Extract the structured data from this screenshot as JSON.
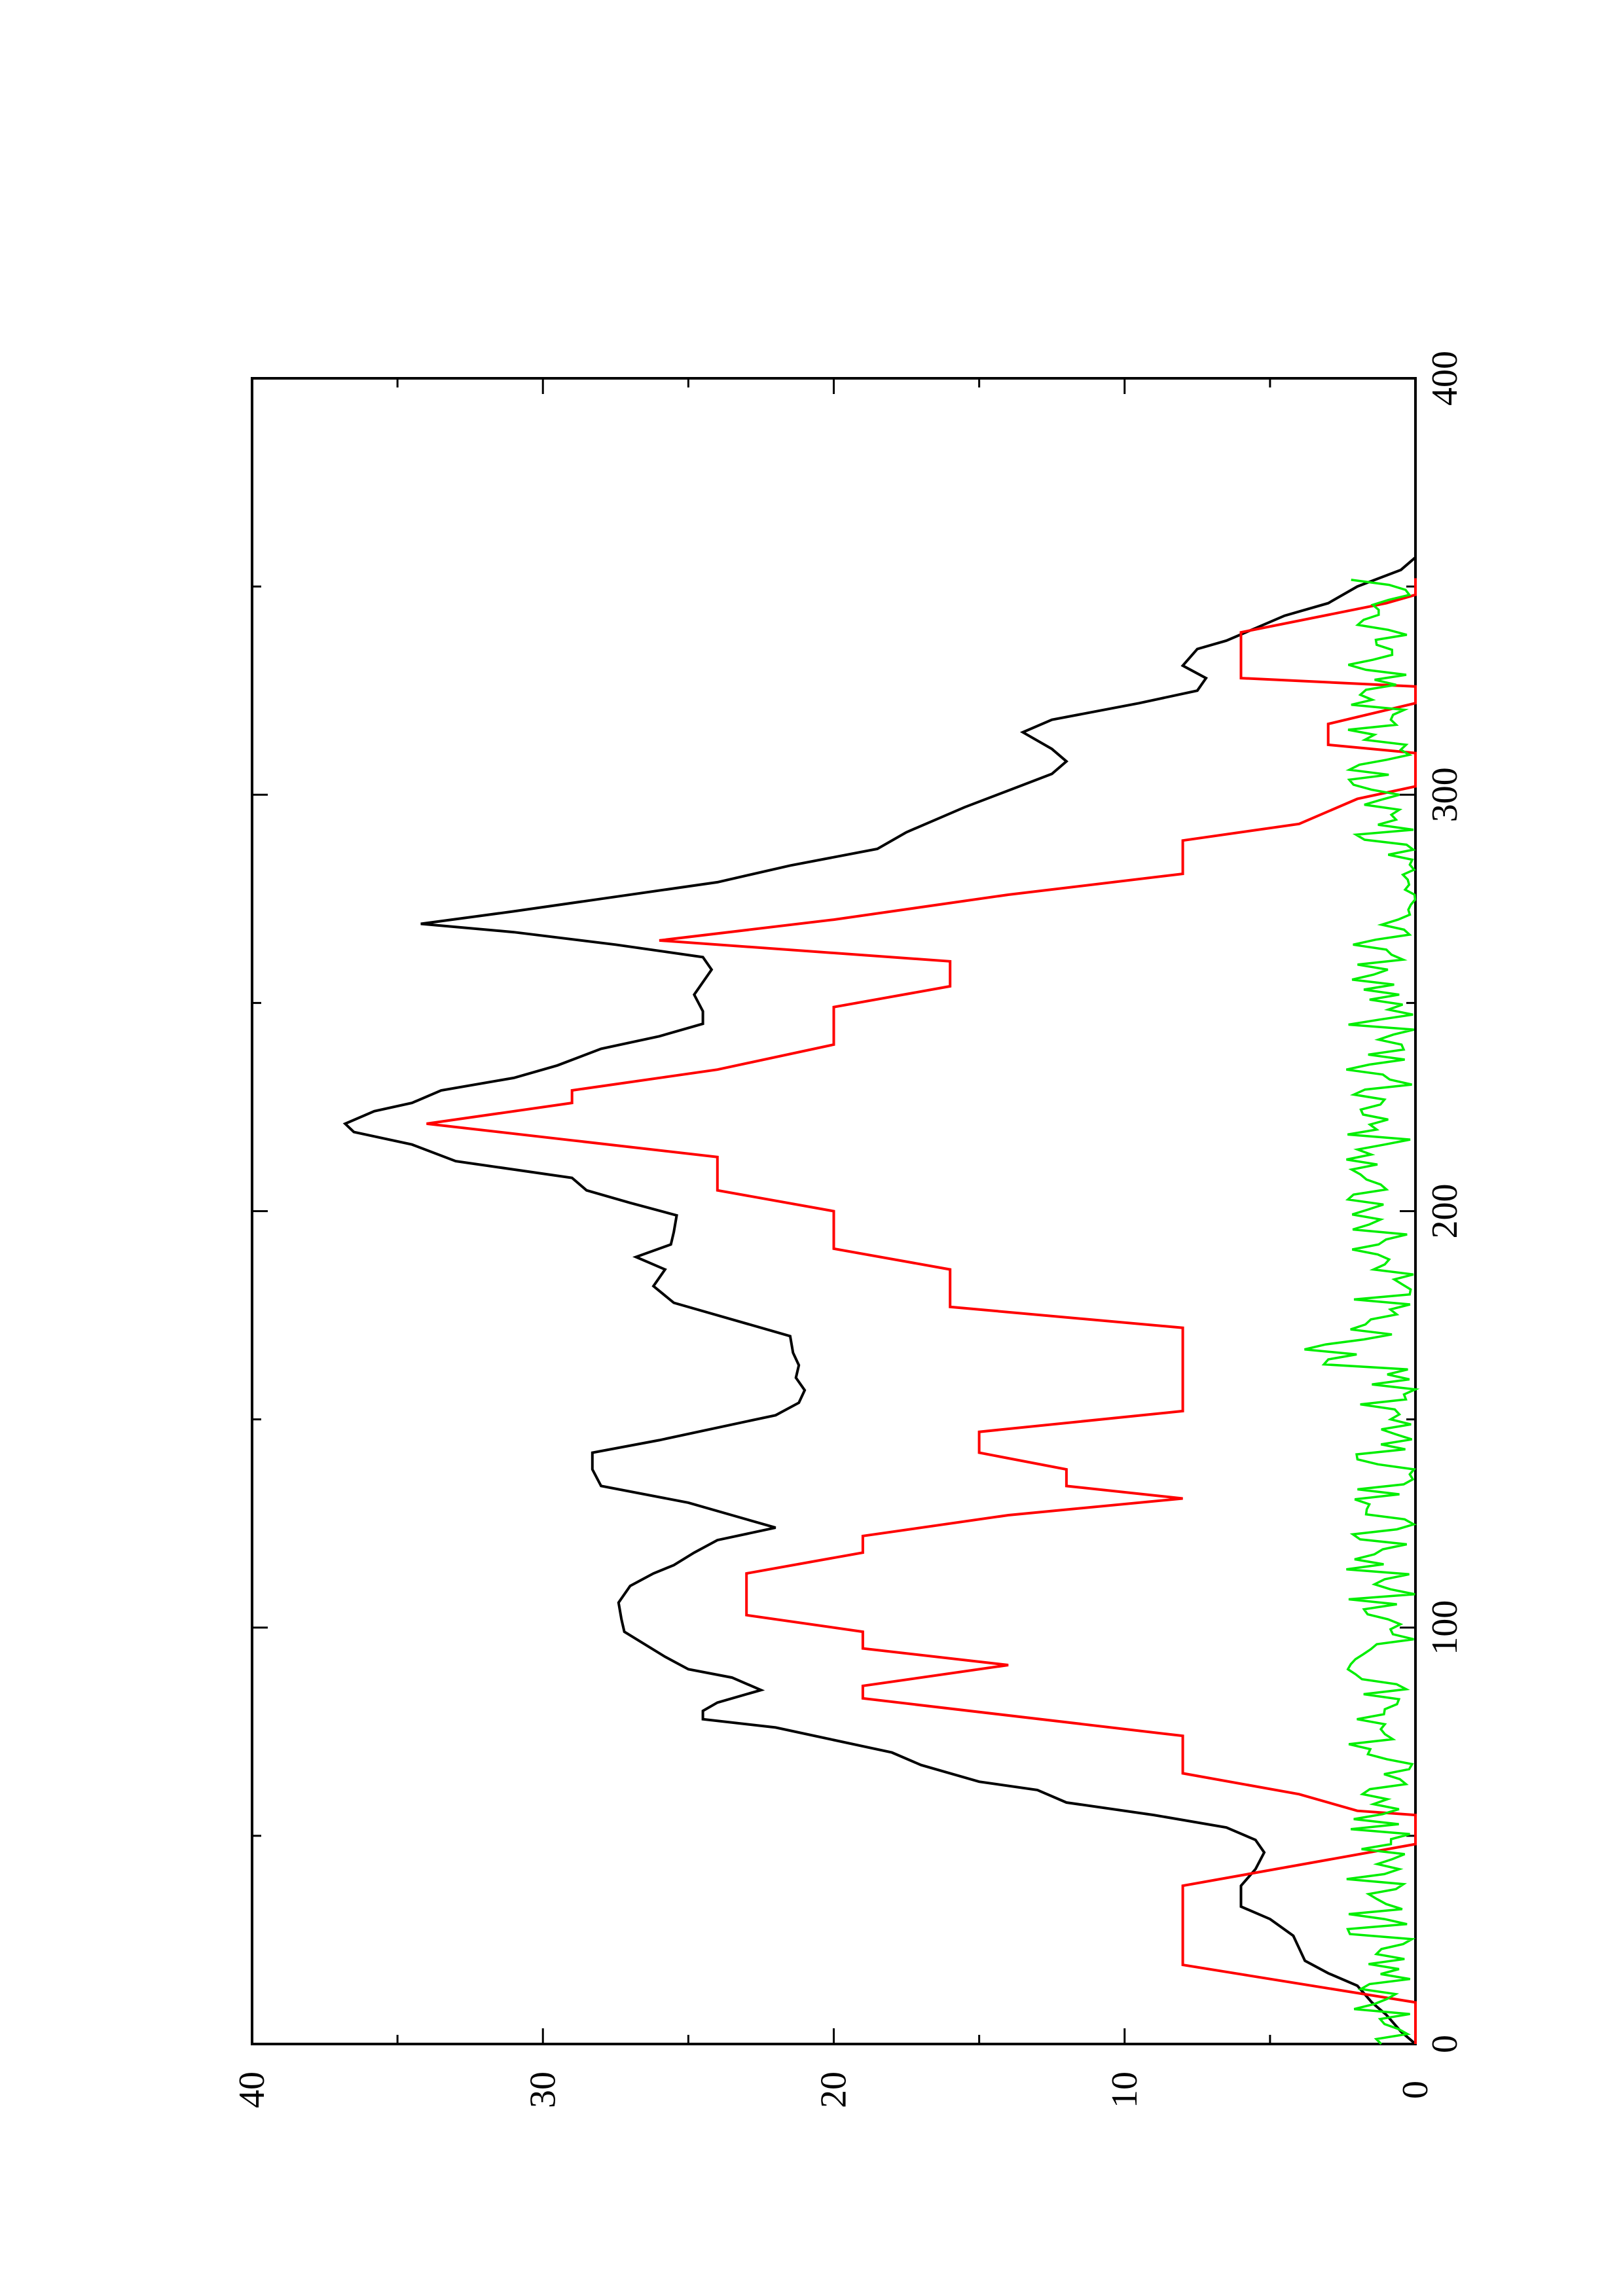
{
  "chart_data": {
    "type": "line",
    "orientation": "rotated-90-ccw",
    "title": "",
    "xlabel": "",
    "ylabel": "",
    "xlim": [
      0,
      400
    ],
    "ylim": [
      0,
      40
    ],
    "x_ticks": [
      0,
      100,
      200,
      300,
      400
    ],
    "y_ticks": [
      0,
      10,
      20,
      30,
      40
    ],
    "x_tick_labels": [
      "0",
      "100",
      "200",
      "300",
      "400"
    ],
    "y_tick_labels": [
      "0",
      "10",
      "20",
      "30",
      "40"
    ],
    "grid": false,
    "legend": "none",
    "series": [
      {
        "color": "#000000",
        "points": [
          [
            0,
            0
          ],
          [
            3,
            0.5
          ],
          [
            7,
            1
          ],
          [
            10,
            1.5
          ],
          [
            14,
            2
          ],
          [
            17,
            3
          ],
          [
            20,
            3.8
          ],
          [
            23,
            4
          ],
          [
            26,
            4.2
          ],
          [
            30,
            5
          ],
          [
            33,
            6
          ],
          [
            38,
            6
          ],
          [
            42,
            5.5
          ],
          [
            46,
            5.2
          ],
          [
            49,
            5.5
          ],
          [
            52,
            6.5
          ],
          [
            55,
            9
          ],
          [
            58,
            12
          ],
          [
            61,
            13
          ],
          [
            63,
            15
          ],
          [
            65,
            16
          ],
          [
            67,
            17
          ],
          [
            70,
            18
          ],
          [
            73,
            20
          ],
          [
            76,
            22
          ],
          [
            78,
            24.5
          ],
          [
            80,
            24.5
          ],
          [
            82,
            24
          ],
          [
            85,
            22.5
          ],
          [
            88,
            23.5
          ],
          [
            90,
            25
          ],
          [
            93,
            25.8
          ],
          [
            96,
            26.5
          ],
          [
            99,
            27.2
          ],
          [
            102,
            27.3
          ],
          [
            106,
            27.4
          ],
          [
            110,
            27
          ],
          [
            113,
            26.2
          ],
          [
            115,
            25.5
          ],
          [
            118,
            24.8
          ],
          [
            121,
            24
          ],
          [
            124,
            22
          ],
          [
            127,
            23.5
          ],
          [
            130,
            25
          ],
          [
            134,
            28
          ],
          [
            138,
            28.3
          ],
          [
            142,
            28.3
          ],
          [
            145,
            26
          ],
          [
            148,
            24
          ],
          [
            151,
            22
          ],
          [
            154,
            21.2
          ],
          [
            157,
            21
          ],
          [
            160,
            21.3
          ],
          [
            163,
            21.2
          ],
          [
            166,
            21.4
          ],
          [
            170,
            21.5
          ],
          [
            174,
            23.5
          ],
          [
            178,
            25.5
          ],
          [
            182,
            26.2
          ],
          [
            186,
            25.8
          ],
          [
            189,
            26.8
          ],
          [
            192,
            25.6
          ],
          [
            195,
            25.5
          ],
          [
            199,
            25.4
          ],
          [
            202,
            27
          ],
          [
            205,
            28.5
          ],
          [
            208,
            29
          ],
          [
            212,
            33
          ],
          [
            216,
            34.5
          ],
          [
            219,
            36.5
          ],
          [
            221,
            36.8
          ],
          [
            224,
            35.8
          ],
          [
            226,
            34.5
          ],
          [
            229,
            33.5
          ],
          [
            232,
            31
          ],
          [
            235,
            29.5
          ],
          [
            239,
            28
          ],
          [
            242,
            26
          ],
          [
            245,
            24.5
          ],
          [
            248,
            24.5
          ],
          [
            252,
            24.8
          ],
          [
            255,
            24.5
          ],
          [
            258,
            24.2
          ],
          [
            261,
            24.5
          ],
          [
            264,
            27.5
          ],
          [
            267,
            31
          ],
          [
            269,
            34.2
          ],
          [
            272,
            31
          ],
          [
            275,
            28
          ],
          [
            279,
            24
          ],
          [
            283,
            21.5
          ],
          [
            287,
            18.5
          ],
          [
            291,
            17.5
          ],
          [
            294,
            16.5
          ],
          [
            297,
            15.5
          ],
          [
            301,
            14
          ],
          [
            305,
            12.5
          ],
          [
            308,
            12
          ],
          [
            311,
            12.5
          ],
          [
            315,
            13.5
          ],
          [
            318,
            12.5
          ],
          [
            322,
            9.5
          ],
          [
            325,
            7.5
          ],
          [
            328,
            7.2
          ],
          [
            331,
            8
          ],
          [
            335,
            7.5
          ],
          [
            337,
            6.5
          ],
          [
            340,
            5.5
          ],
          [
            343,
            4.5
          ],
          [
            346,
            3
          ],
          [
            350,
            2
          ],
          [
            354,
            0.5
          ],
          [
            357,
            0
          ]
        ]
      },
      {
        "color": "#ff0000",
        "points": [
          [
            0,
            0
          ],
          [
            5,
            0
          ],
          [
            10,
            0
          ],
          [
            19,
            8
          ],
          [
            38,
            8
          ],
          [
            48,
            0
          ],
          [
            53,
            0
          ],
          [
            55,
            0
          ],
          [
            56,
            2
          ],
          [
            60,
            4
          ],
          [
            65,
            8
          ],
          [
            74,
            8
          ],
          [
            83,
            19
          ],
          [
            86,
            19
          ],
          [
            91,
            14
          ],
          [
            95,
            19
          ],
          [
            99,
            19
          ],
          [
            103,
            23
          ],
          [
            113,
            23
          ],
          [
            118,
            19
          ],
          [
            122,
            19
          ],
          [
            127,
            14
          ],
          [
            131,
            8
          ],
          [
            134,
            12
          ],
          [
            138,
            12
          ],
          [
            142,
            15
          ],
          [
            147,
            15
          ],
          [
            152,
            8
          ],
          [
            172,
            8
          ],
          [
            177,
            16
          ],
          [
            186,
            16
          ],
          [
            191,
            20
          ],
          [
            200,
            20
          ],
          [
            205,
            24
          ],
          [
            213,
            24
          ],
          [
            217,
            29
          ],
          [
            221,
            34
          ],
          [
            226,
            29
          ],
          [
            229,
            29
          ],
          [
            234,
            24
          ],
          [
            240,
            20
          ],
          [
            249,
            20
          ],
          [
            254,
            16
          ],
          [
            260,
            16
          ],
          [
            265,
            26
          ],
          [
            270,
            20
          ],
          [
            276,
            14
          ],
          [
            281,
            8
          ],
          [
            289,
            8
          ],
          [
            293,
            4
          ],
          [
            299,
            2
          ],
          [
            302,
            0
          ],
          [
            310,
            0
          ],
          [
            312,
            3
          ],
          [
            317,
            3
          ],
          [
            322,
            0
          ],
          [
            326,
            0
          ],
          [
            328,
            6
          ],
          [
            339,
            6
          ],
          [
            346,
            1
          ],
          [
            348,
            0
          ],
          [
            352,
            0
          ]
        ]
      },
      {
        "color": "#00ee00",
        "points": []
      }
    ]
  }
}
